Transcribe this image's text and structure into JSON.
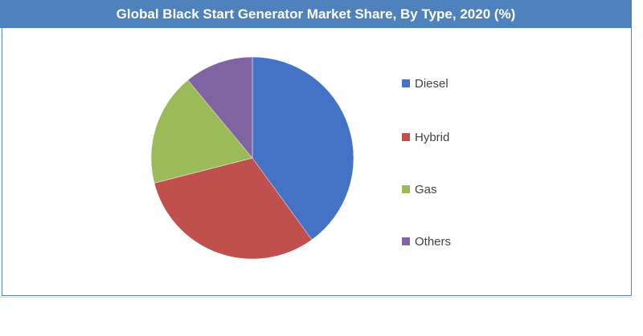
{
  "chart_data": {
    "type": "pie",
    "title": "Global Black Start Generator Market Share, By Type, 2020 (%)",
    "categories": [
      "Diesel",
      "Hybrid",
      "Gas",
      "Others"
    ],
    "values": [
      40,
      31,
      18,
      11
    ],
    "colors": [
      "#4472c4",
      "#c0504d",
      "#9bbb59",
      "#8064a2"
    ],
    "legend_position": "right"
  }
}
